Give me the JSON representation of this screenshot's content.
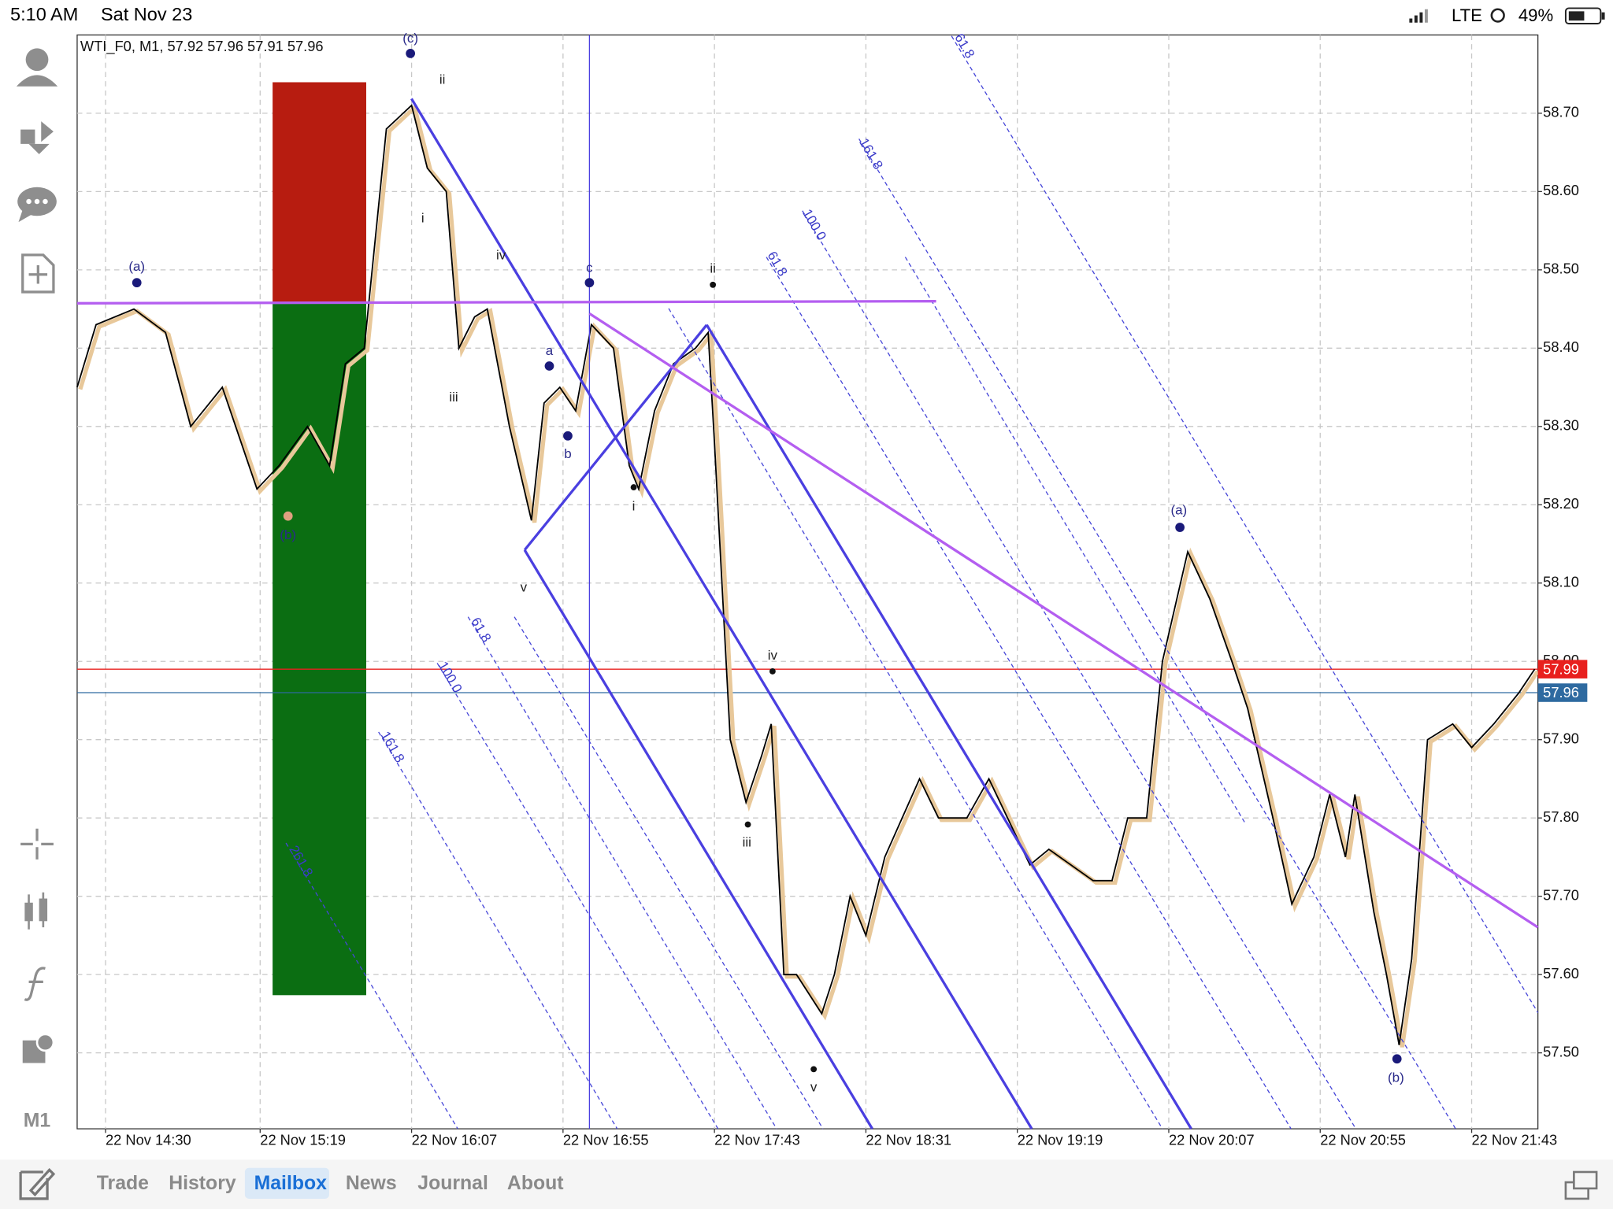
{
  "status_bar": {
    "time": "5:10 AM",
    "date": "Sat Nov 23",
    "network": "LTE",
    "battery": "49%"
  },
  "toolbar": {
    "timeframe": "M1"
  },
  "tabs": [
    "Trade",
    "History",
    "Mailbox",
    "News",
    "Journal",
    "About"
  ],
  "chart_data": {
    "type": "line",
    "title": "WTI_F0, M1, 57.92 57.96 57.91 57.96",
    "x": [
      "22 Nov 14:21",
      "22 Nov 14:27",
      "22 Nov 14:39",
      "22 Nov 14:49",
      "22 Nov 14:57",
      "22 Nov 15:07",
      "22 Nov 15:18",
      "22 Nov 15:25",
      "22 Nov 15:34",
      "22 Nov 15:41",
      "22 Nov 15:46",
      "22 Nov 15:52",
      "22 Nov 15:59",
      "22 Nov 16:07",
      "22 Nov 16:12",
      "22 Nov 16:18",
      "22 Nov 16:22",
      "22 Nov 16:27",
      "22 Nov 16:31",
      "22 Nov 16:38",
      "22 Nov 16:45",
      "22 Nov 16:49",
      "22 Nov 16:54",
      "22 Nov 16:59",
      "22 Nov 17:04",
      "22 Nov 17:11",
      "22 Nov 17:16",
      "22 Nov 17:19",
      "22 Nov 17:24",
      "22 Nov 17:30",
      "22 Nov 17:37",
      "22 Nov 17:41",
      "22 Nov 17:43",
      "22 Nov 17:48",
      "22 Nov 17:53",
      "22 Nov 17:58",
      "22 Nov 18:01",
      "22 Nov 18:05",
      "22 Nov 18:09",
      "22 Nov 18:17",
      "22 Nov 18:21",
      "22 Nov 18:26",
      "22 Nov 18:31",
      "22 Nov 18:37",
      "22 Nov 18:48",
      "22 Nov 18:54",
      "22 Nov 19:03",
      "22 Nov 19:10",
      "22 Nov 19:23",
      "22 Nov 19:29",
      "22 Nov 19:43",
      "22 Nov 19:49",
      "22 Nov 19:54",
      "22 Nov 20:00",
      "22 Nov 20:05",
      "22 Nov 20:13",
      "22 Nov 20:20",
      "22 Nov 20:27",
      "22 Nov 20:32",
      "22 Nov 20:40",
      "22 Nov 20:46",
      "22 Nov 20:53",
      "22 Nov 20:58",
      "22 Nov 21:03",
      "22 Nov 21:06",
      "22 Nov 21:12",
      "22 Nov 21:16",
      "22 Nov 21:20",
      "22 Nov 21:24",
      "22 Nov 21:29",
      "22 Nov 21:37",
      "22 Nov 21:43",
      "22 Nov 21:50",
      "22 Nov 21:58",
      "22 Nov 22:03"
    ],
    "series": [
      {
        "color": "#000000",
        "values": [
          58.35,
          58.43,
          58.45,
          58.42,
          58.3,
          58.35,
          58.22,
          58.25,
          58.3,
          58.25,
          58.38,
          58.4,
          58.68,
          58.71,
          58.63,
          58.6,
          58.4,
          58.44,
          58.45,
          58.3,
          58.18,
          58.33,
          58.35,
          58.32,
          58.43,
          58.4,
          58.25,
          58.22,
          58.32,
          58.38,
          58.4,
          58.42,
          58.28,
          57.9,
          57.82,
          57.88,
          57.92,
          57.6,
          57.6,
          57.55,
          57.6,
          57.7,
          57.65,
          57.75,
          57.85,
          57.8,
          57.8,
          57.85,
          57.74,
          57.76,
          57.72,
          57.72,
          57.8,
          57.8,
          58.0,
          58.14,
          58.08,
          58.0,
          57.94,
          57.8,
          57.69,
          57.75,
          57.83,
          57.75,
          57.83,
          57.68,
          57.6,
          57.51,
          57.62,
          57.9,
          57.92,
          57.89,
          57.92,
          57.96,
          57.99
        ]
      }
    ],
    "xlim": [
      "22 Nov 14:21",
      "22 Nov 22:04"
    ],
    "xticks": [
      "22 Nov 14:30",
      "22 Nov 15:19",
      "22 Nov 16:07",
      "22 Nov 16:55",
      "22 Nov 17:43",
      "22 Nov 18:31",
      "22 Nov 19:19",
      "22 Nov 20:07",
      "22 Nov 20:55",
      "22 Nov 21:43"
    ],
    "ylim": [
      57.403,
      58.8
    ],
    "yticks": [
      {
        "value": 57.5,
        "label": "57.50"
      },
      {
        "value": 57.6,
        "label": "57.60"
      },
      {
        "value": 57.7,
        "label": "57.70"
      },
      {
        "value": 57.8,
        "label": "57.80"
      },
      {
        "value": 57.9,
        "label": "57.90"
      },
      {
        "value": 58.0,
        "label": "58.00"
      },
      {
        "value": 58.1,
        "label": "58.10"
      },
      {
        "value": 58.2,
        "label": "58.20"
      },
      {
        "value": 58.3,
        "label": "58.30"
      },
      {
        "value": 58.4,
        "label": "58.40"
      },
      {
        "value": 58.5,
        "label": "58.50"
      },
      {
        "value": 58.6,
        "label": "58.60"
      },
      {
        "value": 58.7,
        "label": "58.70"
      }
    ],
    "grid": true,
    "price_lines": [
      {
        "value": 57.99,
        "color": "#e8201e"
      },
      {
        "value": 57.96,
        "color": "#2e6aa0"
      }
    ],
    "annotations": [
      "(c)",
      "ii",
      "i",
      "iv",
      "iii",
      "v",
      "(a)",
      "(b)",
      "a",
      "b",
      "c",
      "ii",
      "i",
      "iv",
      "iii",
      "v",
      "(a)",
      "(b)",
      "61.8",
      "100.0",
      "161.8",
      "261.8",
      "61.8",
      "100.0",
      "161.8",
      "61.8"
    ]
  }
}
